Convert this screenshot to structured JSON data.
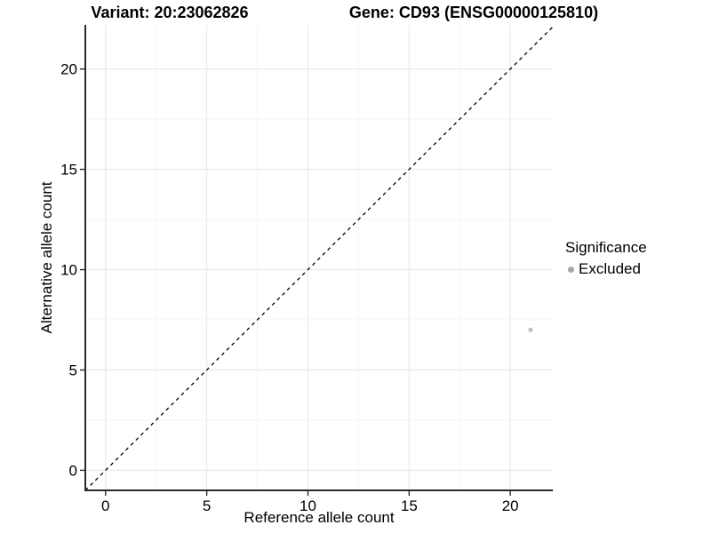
{
  "chart_data": {
    "type": "scatter",
    "title_left": "Variant: 20:23062826",
    "title_right": "Gene: CD93 (ENSG00000125810)",
    "xlabel": "Reference allele count",
    "ylabel": "Alternative allele count",
    "xlim": [
      -1.0,
      22.1
    ],
    "ylim": [
      -1.0,
      22.2
    ],
    "xticks": [
      0,
      5,
      10,
      15,
      20
    ],
    "yticks": [
      0,
      5,
      10,
      15,
      20
    ],
    "xminor": [
      2.5,
      7.5,
      12.5,
      17.5
    ],
    "yminor": [
      2.5,
      7.5,
      12.5,
      17.5
    ],
    "grid": true,
    "legend_position": "right",
    "reference_line": {
      "kind": "identity y=x",
      "dashed": true,
      "color": "#000000"
    },
    "series": [
      {
        "name": "Excluded",
        "color": "#bdbdbd",
        "legend_color": "#a6a6a6",
        "point_radius": 2.5,
        "points": [
          [
            21,
            7
          ]
        ]
      }
    ],
    "legend": {
      "title": "Significance",
      "items": [
        {
          "label": "Excluded"
        }
      ]
    }
  },
  "colors": {
    "background": "#ffffff",
    "axis_line": "#2b2b2b",
    "tick_text": "#000000",
    "grid_major": "#e8e8e8",
    "grid_minor": "#f3f3f3"
  }
}
